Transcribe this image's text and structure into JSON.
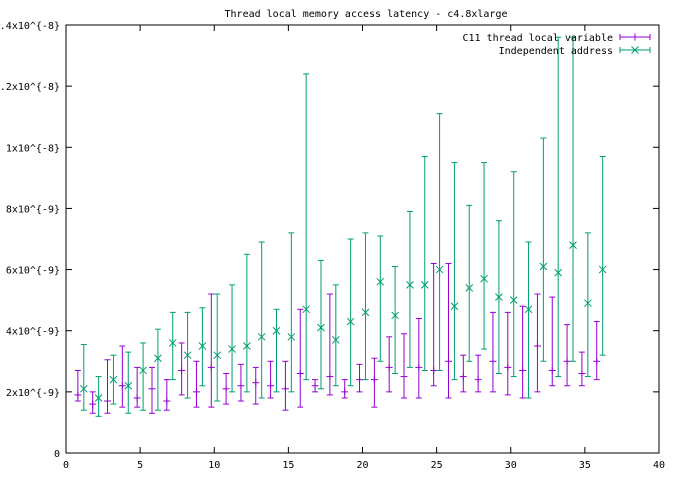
{
  "chart_data": {
    "type": "scatter",
    "title": "Thread local memory access latency - c4.8xlarge",
    "xlabel": "",
    "ylabel": "",
    "xlim": [
      0,
      40
    ],
    "ylim": [
      0,
      1.4e-08
    ],
    "x_ticks": [
      0,
      5,
      10,
      15,
      20,
      25,
      30,
      35,
      40
    ],
    "x_tick_labels": [
      "0",
      "5",
      "10",
      "15",
      "20",
      "25",
      "30",
      "35",
      "40"
    ],
    "y_ticks": [
      0,
      2e-09,
      4e-09,
      6e-09,
      8e-09,
      1e-08,
      1.2e-08,
      1.4e-08
    ],
    "y_tick_labels": [
      "0",
      "2x10^{-9}",
      "4x10^{-9}",
      "6x10^{-9}",
      "8x10^{-9}",
      "1x10^{-8}",
      "1.2x10^{-8}",
      "1.4x10^{-8}"
    ],
    "grid": false,
    "legend_position": "top-right",
    "series": [
      {
        "name": "C11 thread local variable",
        "color": "#9400d3",
        "marker": "plus",
        "points": [
          {
            "x": 0.8,
            "y": 1.9e-09,
            "ylow": 1.7e-09,
            "yhigh": 2.7e-09
          },
          {
            "x": 1.8,
            "y": 1.6e-09,
            "ylow": 1.3e-09,
            "yhigh": 2e-09
          },
          {
            "x": 2.8,
            "y": 1.7e-09,
            "ylow": 1.3e-09,
            "yhigh": 3.05e-09
          },
          {
            "x": 3.8,
            "y": 2.2e-09,
            "ylow": 1.5e-09,
            "yhigh": 3.5e-09
          },
          {
            "x": 4.8,
            "y": 1.8e-09,
            "ylow": 1.5e-09,
            "yhigh": 2.8e-09
          },
          {
            "x": 5.8,
            "y": 2.1e-09,
            "ylow": 1.3e-09,
            "yhigh": 2.8e-09
          },
          {
            "x": 6.8,
            "y": 1.7e-09,
            "ylow": 1.4e-09,
            "yhigh": 2.4e-09
          },
          {
            "x": 7.8,
            "y": 2.7e-09,
            "ylow": 1.9e-09,
            "yhigh": 3.6e-09
          },
          {
            "x": 8.8,
            "y": 2e-09,
            "ylow": 1.5e-09,
            "yhigh": 3e-09
          },
          {
            "x": 9.8,
            "y": 2.8e-09,
            "ylow": 1.5e-09,
            "yhigh": 5.2e-09
          },
          {
            "x": 10.8,
            "y": 2.1e-09,
            "ylow": 1.6e-09,
            "yhigh": 2.6e-09
          },
          {
            "x": 11.8,
            "y": 2.2e-09,
            "ylow": 1.7e-09,
            "yhigh": 2.9e-09
          },
          {
            "x": 12.8,
            "y": 2.3e-09,
            "ylow": 1.6e-09,
            "yhigh": 2.8e-09
          },
          {
            "x": 13.8,
            "y": 2.2e-09,
            "ylow": 1.8e-09,
            "yhigh": 3e-09
          },
          {
            "x": 14.8,
            "y": 2.1e-09,
            "ylow": 1.4e-09,
            "yhigh": 3e-09
          },
          {
            "x": 15.8,
            "y": 2.6e-09,
            "ylow": 1.5e-09,
            "yhigh": 4.7e-09
          },
          {
            "x": 16.8,
            "y": 2.2e-09,
            "ylow": 2e-09,
            "yhigh": 2.4e-09
          },
          {
            "x": 17.8,
            "y": 2.5e-09,
            "ylow": 1.9e-09,
            "yhigh": 5.2e-09
          },
          {
            "x": 18.8,
            "y": 2e-09,
            "ylow": 1.8e-09,
            "yhigh": 2.4e-09
          },
          {
            "x": 19.8,
            "y": 2.4e-09,
            "ylow": 2e-09,
            "yhigh": 2.9e-09
          },
          {
            "x": 20.8,
            "y": 2.4e-09,
            "ylow": 1.5e-09,
            "yhigh": 3.1e-09
          },
          {
            "x": 21.8,
            "y": 2.8e-09,
            "ylow": 2e-09,
            "yhigh": 3.8e-09
          },
          {
            "x": 22.8,
            "y": 2.5e-09,
            "ylow": 1.8e-09,
            "yhigh": 3.9e-09
          },
          {
            "x": 23.8,
            "y": 2.8e-09,
            "ylow": 1.8e-09,
            "yhigh": 4.4e-09
          },
          {
            "x": 24.8,
            "y": 2.7e-09,
            "ylow": 2.2e-09,
            "yhigh": 6.2e-09
          },
          {
            "x": 25.8,
            "y": 3e-09,
            "ylow": 1.8e-09,
            "yhigh": 6.2e-09
          },
          {
            "x": 26.8,
            "y": 2.5e-09,
            "ylow": 2e-09,
            "yhigh": 3.2e-09
          },
          {
            "x": 27.8,
            "y": 2.4e-09,
            "ylow": 2e-09,
            "yhigh": 3.2e-09
          },
          {
            "x": 28.8,
            "y": 3e-09,
            "ylow": 2e-09,
            "yhigh": 4.6e-09
          },
          {
            "x": 29.8,
            "y": 2.8e-09,
            "ylow": 1.9e-09,
            "yhigh": 4.6e-09
          },
          {
            "x": 30.8,
            "y": 2.7e-09,
            "ylow": 1.8e-09,
            "yhigh": 4.8e-09
          },
          {
            "x": 31.8,
            "y": 3.5e-09,
            "ylow": 2e-09,
            "yhigh": 5.2e-09
          },
          {
            "x": 32.8,
            "y": 2.7e-09,
            "ylow": 2.2e-09,
            "yhigh": 5.1e-09
          },
          {
            "x": 33.8,
            "y": 3e-09,
            "ylow": 2.2e-09,
            "yhigh": 4.2e-09
          },
          {
            "x": 34.8,
            "y": 2.6e-09,
            "ylow": 2.2e-09,
            "yhigh": 3.3e-09
          },
          {
            "x": 35.8,
            "y": 3e-09,
            "ylow": 2.4e-09,
            "yhigh": 4.3e-09
          }
        ]
      },
      {
        "name": "Independent address",
        "color": "#009e73",
        "marker": "cross",
        "points": [
          {
            "x": 1.2,
            "y": 2.1e-09,
            "ylow": 1.4e-09,
            "yhigh": 3.55e-09
          },
          {
            "x": 2.2,
            "y": 1.8e-09,
            "ylow": 1.2e-09,
            "yhigh": 2.5e-09
          },
          {
            "x": 3.2,
            "y": 2.4e-09,
            "ylow": 1.6e-09,
            "yhigh": 3.2e-09
          },
          {
            "x": 4.2,
            "y": 2.2e-09,
            "ylow": 1.3e-09,
            "yhigh": 3.3e-09
          },
          {
            "x": 5.2,
            "y": 2.7e-09,
            "ylow": 1.4e-09,
            "yhigh": 3.6e-09
          },
          {
            "x": 6.2,
            "y": 3.1e-09,
            "ylow": 1.4e-09,
            "yhigh": 4.05e-09
          },
          {
            "x": 7.2,
            "y": 3.6e-09,
            "ylow": 2.4e-09,
            "yhigh": 4.6e-09
          },
          {
            "x": 8.2,
            "y": 3.2e-09,
            "ylow": 1.8e-09,
            "yhigh": 4.6e-09
          },
          {
            "x": 9.2,
            "y": 3.5e-09,
            "ylow": 2.2e-09,
            "yhigh": 4.75e-09
          },
          {
            "x": 10.2,
            "y": 3.2e-09,
            "ylow": 1.7e-09,
            "yhigh": 5.2e-09
          },
          {
            "x": 11.2,
            "y": 3.4e-09,
            "ylow": 2e-09,
            "yhigh": 5.5e-09
          },
          {
            "x": 12.2,
            "y": 3.5e-09,
            "ylow": 2e-09,
            "yhigh": 6.5e-09
          },
          {
            "x": 13.2,
            "y": 3.8e-09,
            "ylow": 1.8e-09,
            "yhigh": 6.9e-09
          },
          {
            "x": 14.2,
            "y": 4e-09,
            "ylow": 2e-09,
            "yhigh": 4.7e-09
          },
          {
            "x": 15.2,
            "y": 3.8e-09,
            "ylow": 2e-09,
            "yhigh": 7.2e-09
          },
          {
            "x": 16.2,
            "y": 4.7e-09,
            "ylow": 2.4e-09,
            "yhigh": 1.24e-08
          },
          {
            "x": 17.2,
            "y": 4.1e-09,
            "ylow": 2.1e-09,
            "yhigh": 6.3e-09
          },
          {
            "x": 18.2,
            "y": 3.7e-09,
            "ylow": 2.2e-09,
            "yhigh": 5.5e-09
          },
          {
            "x": 19.2,
            "y": 4.3e-09,
            "ylow": 2.2e-09,
            "yhigh": 7e-09
          },
          {
            "x": 20.2,
            "y": 4.6e-09,
            "ylow": 2.4e-09,
            "yhigh": 7.2e-09
          },
          {
            "x": 21.2,
            "y": 5.6e-09,
            "ylow": 3e-09,
            "yhigh": 7.1e-09
          },
          {
            "x": 22.2,
            "y": 4.5e-09,
            "ylow": 2.6e-09,
            "yhigh": 6.1e-09
          },
          {
            "x": 23.2,
            "y": 5.5e-09,
            "ylow": 2.8e-09,
            "yhigh": 7.9e-09
          },
          {
            "x": 24.2,
            "y": 5.5e-09,
            "ylow": 2.7e-09,
            "yhigh": 9.7e-09
          },
          {
            "x": 25.2,
            "y": 6e-09,
            "ylow": 2.7e-09,
            "yhigh": 1.11e-08
          },
          {
            "x": 26.2,
            "y": 4.8e-09,
            "ylow": 2.4e-09,
            "yhigh": 9.5e-09
          },
          {
            "x": 27.2,
            "y": 5.4e-09,
            "ylow": 3e-09,
            "yhigh": 8.1e-09
          },
          {
            "x": 28.2,
            "y": 5.7e-09,
            "ylow": 3.4e-09,
            "yhigh": 9.5e-09
          },
          {
            "x": 29.2,
            "y": 5.1e-09,
            "ylow": 2.6e-09,
            "yhigh": 7.6e-09
          },
          {
            "x": 30.2,
            "y": 5e-09,
            "ylow": 2.5e-09,
            "yhigh": 9.2e-09
          },
          {
            "x": 31.2,
            "y": 4.7e-09,
            "ylow": 1.8e-09,
            "yhigh": 6.9e-09
          },
          {
            "x": 32.2,
            "y": 6.1e-09,
            "ylow": 3e-09,
            "yhigh": 1.03e-08
          },
          {
            "x": 33.2,
            "y": 5.9e-09,
            "ylow": 2.5e-09,
            "yhigh": 1.36e-08
          },
          {
            "x": 34.2,
            "y": 6.8e-09,
            "ylow": 3e-09,
            "yhigh": 1.36e-08
          },
          {
            "x": 35.2,
            "y": 4.9e-09,
            "ylow": 2.5e-09,
            "yhigh": 7.2e-09
          },
          {
            "x": 36.2,
            "y": 6e-09,
            "ylow": 3.2e-09,
            "yhigh": 9.7e-09
          }
        ]
      }
    ]
  }
}
